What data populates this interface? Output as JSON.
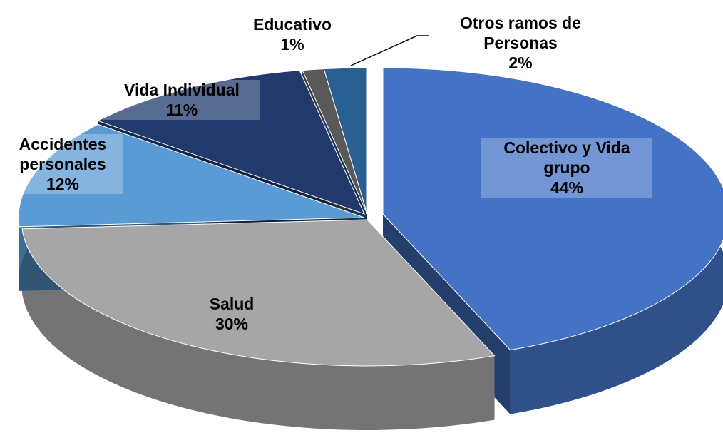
{
  "chart_data": {
    "type": "pie",
    "categories": [
      "Colectivo y Vida grupo",
      "Salud",
      "Accidentes personales",
      "Vida Individual",
      "Educativo",
      "Otros ramos de Personas"
    ],
    "values": [
      44,
      30,
      12,
      11,
      1,
      2
    ],
    "value_labels": [
      "44%",
      "30%",
      "12%",
      "11%",
      "1%",
      "2%"
    ],
    "colors": [
      "#4472c4",
      "#a6a6a6",
      "#5b9bd5",
      "#213a6b",
      "#595959",
      "#2a5f94"
    ]
  }
}
